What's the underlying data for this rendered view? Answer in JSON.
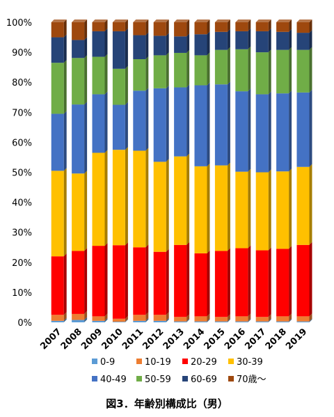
{
  "chart_data": {
    "type": "bar",
    "stacked": true,
    "percent": true,
    "bar_style": "3d",
    "title": "図3．年齢別構成比（男）",
    "xlabel": "",
    "ylabel": "",
    "ylim": [
      0,
      100
    ],
    "ytick_labels": [
      "0%",
      "10%",
      "20%",
      "30%",
      "40%",
      "50%",
      "60%",
      "70%",
      "80%",
      "90%",
      "100%"
    ],
    "legend_position": "bottom",
    "grid": false,
    "categories": [
      "2007",
      "2008",
      "2009",
      "2010",
      "2011",
      "2012",
      "2013",
      "2014",
      "2015",
      "2016",
      "2017",
      "2018",
      "2019"
    ],
    "series": [
      {
        "name": "0-9",
        "color": "#5b9bd5",
        "values": [
          0.5,
          0.8,
          0.5,
          0.2,
          0.5,
          0.5,
          0.3,
          0.3,
          0.3,
          0.3,
          0.3,
          0.3,
          0.3
        ]
      },
      {
        "name": "10-19",
        "color": "#ed7d31",
        "values": [
          2.0,
          2.0,
          1.5,
          1.0,
          2.0,
          2.0,
          1.5,
          1.7,
          1.5,
          1.7,
          1.5,
          1.7,
          1.7
        ]
      },
      {
        "name": "20-29",
        "color": "#ff0000",
        "values": [
          19.5,
          21.0,
          23.5,
          24.5,
          22.5,
          21.0,
          24.0,
          21.0,
          22.0,
          22.7,
          22.2,
          22.5,
          23.8
        ]
      },
      {
        "name": "30-39",
        "color": "#ffc000",
        "values": [
          28.5,
          25.8,
          31.0,
          31.8,
          32.2,
          30.0,
          29.5,
          29.0,
          28.5,
          25.5,
          26.0,
          25.8,
          26.0
        ]
      },
      {
        "name": "40-49",
        "color": "#4472c4",
        "values": [
          19.0,
          23.0,
          19.5,
          15.0,
          20.0,
          24.5,
          23.0,
          27.0,
          27.0,
          26.8,
          26.0,
          26.0,
          24.8
        ]
      },
      {
        "name": "50-59",
        "color": "#70ad47",
        "values": [
          17.0,
          15.5,
          12.5,
          12.0,
          10.5,
          11.0,
          11.5,
          10.0,
          11.5,
          14.0,
          14.0,
          14.5,
          14.2
        ]
      },
      {
        "name": "60-69",
        "color": "#264478",
        "values": [
          8.5,
          6.0,
          8.5,
          12.5,
          8.0,
          6.5,
          5.5,
          7.0,
          6.0,
          6.0,
          7.0,
          6.0,
          5.7
        ]
      },
      {
        "name": "70歳～",
        "color": "#9e480e",
        "values": [
          5.0,
          5.9,
          3.0,
          3.0,
          4.3,
          4.5,
          4.7,
          4.0,
          3.2,
          3.0,
          3.0,
          3.2,
          3.5
        ]
      }
    ]
  }
}
